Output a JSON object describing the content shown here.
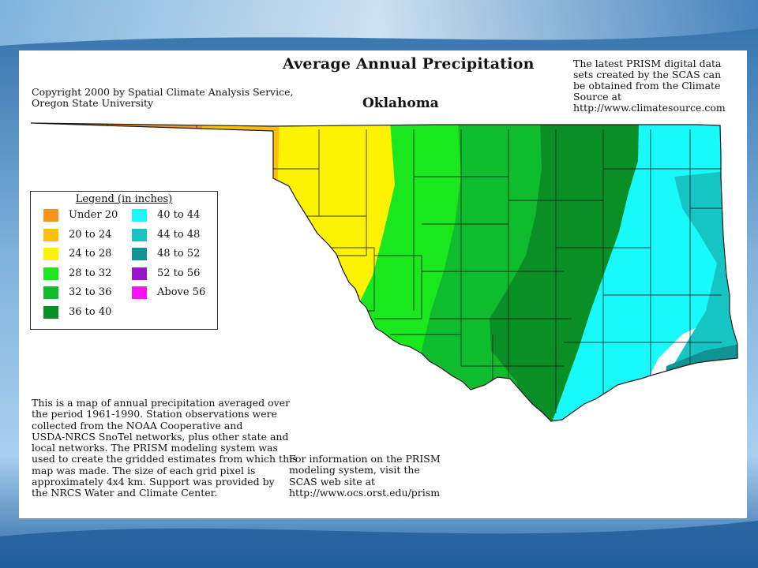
{
  "colors": {
    "band_under_20": "#f7941d",
    "band_20_24": "#fcc00a",
    "band_24_28": "#fcf201",
    "band_28_32": "#19e81f",
    "band_32_36": "#0ebc2d",
    "band_36_40": "#0a8f26",
    "band_40_44": "#18fafa",
    "band_44_48": "#17c4c4",
    "band_48_52": "#0f9393",
    "band_52_56": "#9a14d0",
    "band_above_56": "#fa10fa",
    "county_lines": "#1a1a1a"
  },
  "map": {
    "title": "Average Annual Precipitation",
    "subtitle": "Oklahoma",
    "copyright": "Copyright 2000 by Spatial Climate Analysis Service,\nOregon State University",
    "prism_note": "The latest PRISM digital data\nsets created by the SCAS can\nbe obtained from the Climate\nSource at\nhttp://www.climatesource.com",
    "description": "This is a map of annual precipitation averaged over\nthe period 1961-1990. Station observations were\ncollected from the NOAA Cooperative and\nUSDA-NRCS SnoTel networks, plus other state and\nlocal networks. The PRISM modeling system was\nused to create the gridded estimates from which this\nmap was made. The size of each grid pixel is\napproximately 4x4 km. Support was provided by\nthe NRCS Water and Climate Center.",
    "info_note": "For information on the PRISM\nmodeling system, visit the\nSCAS web site at\n http://www.ocs.orst.edu/prism"
  },
  "legend": {
    "title": "Legend (in inches)",
    "items": [
      {
        "label": "Under 20",
        "color": "#f7941d"
      },
      {
        "label": "20 to 24",
        "color": "#fcc00a"
      },
      {
        "label": "24 to 28",
        "color": "#fcf201"
      },
      {
        "label": "28 to 32",
        "color": "#19e81f"
      },
      {
        "label": "32 to 36",
        "color": "#0ebc2d"
      },
      {
        "label": "36 to 40",
        "color": "#0a8f26"
      },
      {
        "label": "40 to 44",
        "color": "#18fafa"
      },
      {
        "label": "44 to 48",
        "color": "#17c4c4"
      },
      {
        "label": "48 to 52",
        "color": "#0f9393"
      },
      {
        "label": "52 to 56",
        "color": "#9a14d0"
      },
      {
        "label": "Above 56",
        "color": "#fa10fa"
      }
    ]
  }
}
